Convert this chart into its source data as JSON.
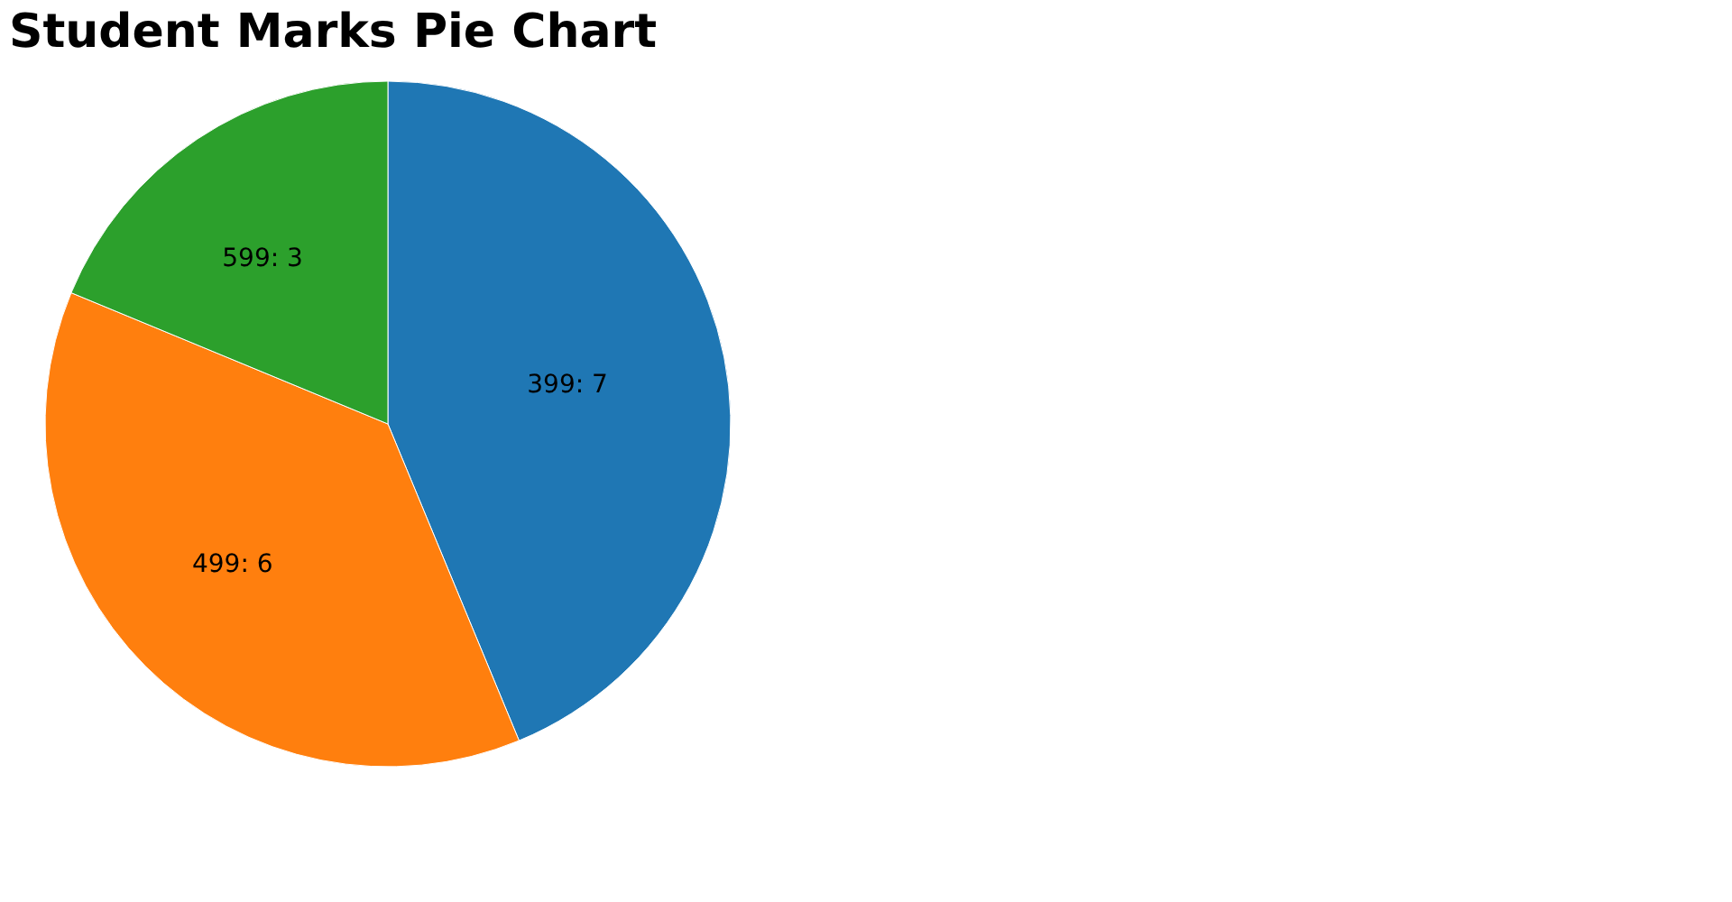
{
  "chart_data": {
    "type": "pie",
    "title": "Student Marks Pie Chart",
    "categories": [
      "399",
      "499",
      "599"
    ],
    "values": [
      7,
      6,
      3
    ],
    "colors": [
      "#1f77b4",
      "#ff7f0e",
      "#2ca02c"
    ],
    "value_labels": [
      ": 7",
      ": 6",
      ": 3"
    ],
    "legend": false
  }
}
